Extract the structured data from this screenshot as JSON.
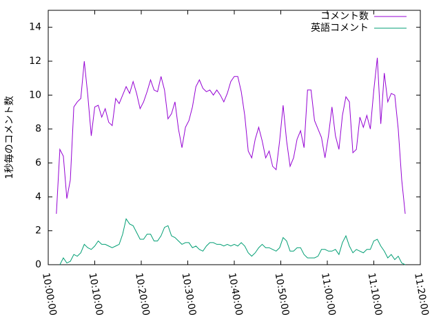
{
  "chart_data": {
    "type": "line",
    "y_label": "1秒毎のコメント数",
    "x": [
      "10:01:45",
      "10:02:30",
      "10:03:15",
      "10:04:00",
      "10:04:45",
      "10:05:30",
      "10:06:15",
      "10:07:00",
      "10:07:45",
      "10:08:30",
      "10:09:15",
      "10:10:00",
      "10:10:45",
      "10:11:30",
      "10:12:15",
      "10:13:00",
      "10:13:45",
      "10:14:30",
      "10:15:15",
      "10:16:00",
      "10:16:45",
      "10:17:30",
      "10:18:15",
      "10:19:00",
      "10:19:45",
      "10:20:30",
      "10:21:15",
      "10:22:00",
      "10:22:45",
      "10:23:30",
      "10:24:15",
      "10:25:00",
      "10:25:45",
      "10:26:30",
      "10:27:15",
      "10:28:00",
      "10:28:45",
      "10:29:30",
      "10:30:15",
      "10:31:00",
      "10:31:45",
      "10:32:30",
      "10:33:15",
      "10:34:00",
      "10:34:45",
      "10:35:30",
      "10:36:15",
      "10:37:00",
      "10:37:45",
      "10:38:30",
      "10:39:15",
      "10:40:00",
      "10:40:45",
      "10:41:30",
      "10:42:15",
      "10:43:00",
      "10:43:45",
      "10:44:30",
      "10:45:15",
      "10:46:00",
      "10:46:45",
      "10:47:30",
      "10:48:15",
      "10:49:00",
      "10:49:45",
      "10:50:30",
      "10:51:15",
      "10:52:00",
      "10:52:45",
      "10:53:30",
      "10:54:15",
      "10:55:00",
      "10:55:45",
      "10:56:30",
      "10:57:15",
      "10:58:00",
      "10:58:45",
      "10:59:30",
      "11:00:15",
      "11:01:00",
      "11:01:45",
      "11:02:30",
      "11:03:15",
      "11:04:00",
      "11:04:45",
      "11:05:30",
      "11:06:15",
      "11:07:00",
      "11:07:45",
      "11:08:30",
      "11:09:15",
      "11:10:00",
      "11:10:45",
      "11:11:30",
      "11:12:15",
      "11:13:00",
      "11:13:45",
      "11:14:30",
      "11:15:15",
      "11:16:00",
      "11:16:45"
    ],
    "series": [
      {
        "name": "コメント数",
        "color": "#9400d3",
        "values": [
          3.0,
          6.8,
          6.4,
          3.9,
          5.0,
          9.3,
          9.6,
          9.8,
          12.0,
          10.0,
          7.6,
          9.3,
          9.4,
          8.7,
          9.2,
          8.4,
          8.2,
          9.8,
          9.5,
          10.0,
          10.5,
          10.1,
          10.8,
          10.1,
          9.2,
          9.6,
          10.2,
          10.9,
          10.3,
          10.2,
          11.1,
          10.3,
          8.6,
          8.9,
          9.6,
          8.0,
          6.9,
          8.1,
          8.5,
          9.3,
          10.5,
          10.9,
          10.4,
          10.2,
          10.3,
          10.0,
          10.3,
          10.0,
          9.6,
          10.1,
          10.8,
          11.1,
          11.1,
          10.2,
          8.8,
          6.7,
          6.3,
          7.4,
          8.1,
          7.3,
          6.3,
          6.7,
          5.8,
          5.6,
          7.3,
          9.4,
          7.3,
          5.8,
          6.3,
          7.4,
          7.9,
          6.9,
          10.3,
          10.3,
          8.5,
          8.0,
          7.5,
          6.3,
          7.6,
          9.3,
          7.6,
          6.8,
          8.8,
          9.9,
          9.6,
          6.6,
          6.8,
          8.7,
          8.1,
          8.8,
          8.0,
          10.3,
          12.2,
          8.3,
          11.3,
          9.6,
          10.1,
          10.0,
          8.0,
          5.0,
          3.0
        ]
      },
      {
        "name": "英語コメント",
        "color": "#009e73",
        "values": [
          null,
          0.0,
          0.4,
          0.1,
          0.2,
          0.6,
          0.5,
          0.7,
          1.2,
          1.0,
          0.9,
          1.1,
          1.4,
          1.2,
          1.2,
          1.1,
          1.0,
          1.1,
          1.2,
          1.8,
          2.7,
          2.4,
          2.3,
          1.9,
          1.5,
          1.5,
          1.8,
          1.8,
          1.4,
          1.4,
          1.7,
          2.2,
          2.3,
          1.7,
          1.6,
          1.4,
          1.2,
          1.3,
          1.3,
          1.0,
          1.1,
          0.9,
          0.8,
          1.1,
          1.3,
          1.3,
          1.2,
          1.2,
          1.1,
          1.2,
          1.1,
          1.2,
          1.1,
          1.3,
          1.1,
          0.7,
          0.5,
          0.7,
          1.0,
          1.2,
          1.0,
          1.0,
          0.9,
          0.8,
          1.0,
          1.6,
          1.4,
          0.8,
          0.8,
          1.0,
          1.0,
          0.6,
          0.4,
          0.4,
          0.4,
          0.5,
          0.9,
          0.9,
          0.8,
          0.8,
          0.9,
          0.6,
          1.3,
          1.7,
          1.1,
          0.7,
          0.9,
          0.8,
          0.7,
          0.9,
          0.9,
          1.4,
          1.5,
          1.1,
          0.8,
          0.4,
          0.6,
          0.3,
          0.5,
          0.1,
          0.0
        ]
      }
    ],
    "xlim": [
      "10:00:00",
      "11:20:00"
    ],
    "xticks": [
      "10:00:00",
      "10:10:00",
      "10:20:00",
      "10:30:00",
      "10:40:00",
      "10:50:00",
      "11:00:00",
      "11:10:00",
      "11:20:00"
    ],
    "ylim": [
      0,
      15
    ],
    "yticks": [
      0,
      2,
      4,
      6,
      8,
      10,
      12,
      14
    ],
    "legend": "top-right"
  }
}
